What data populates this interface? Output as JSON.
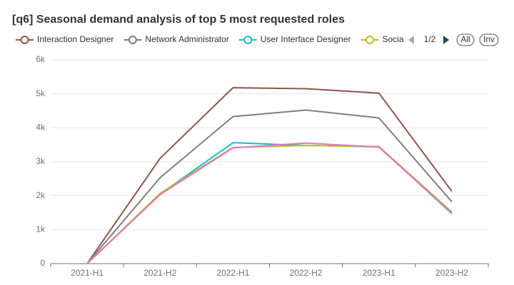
{
  "chart_data": {
    "type": "line",
    "title": "[q6] Seasonal demand analysis of top 5 most requested roles",
    "categories": [
      "2021-H1",
      "2021-H2",
      "2022-H1",
      "2022-H2",
      "2023-H1",
      "2023-H2"
    ],
    "series": [
      {
        "name": "Interaction Designer",
        "color": "#8c564b",
        "values": [
          0,
          3100,
          5180,
          5150,
          5020,
          2130
        ]
      },
      {
        "name": "Network Administrator",
        "color": "#7f7f7f",
        "values": [
          0,
          2530,
          4330,
          4520,
          4290,
          1820
        ]
      },
      {
        "name": "User Interface Designer",
        "color": "#17becf",
        "values": [
          0,
          2050,
          3560,
          3480,
          3440,
          1470
        ]
      },
      {
        "name": "Social",
        "color": "#bcbd22",
        "values": [
          0,
          2070,
          3420,
          3480,
          3450,
          1520
        ]
      },
      {
        "color": "#e377c2",
        "values": [
          0,
          2030,
          3410,
          3550,
          3430,
          1490
        ]
      }
    ],
    "ylim": [
      0,
      6000
    ],
    "yticks": [
      0,
      {
        "value": 1000,
        "label": "1k"
      },
      {
        "value": 2000,
        "label": "2k"
      },
      {
        "value": 3000,
        "label": "3k"
      },
      {
        "value": 4000,
        "label": "4k"
      },
      {
        "value": 5000,
        "label": "5k"
      },
      {
        "value": 6000,
        "label": "6k"
      }
    ],
    "grid": true,
    "legend_page": "1/2",
    "legend_all": "All",
    "legend_inverse": "Inv"
  }
}
